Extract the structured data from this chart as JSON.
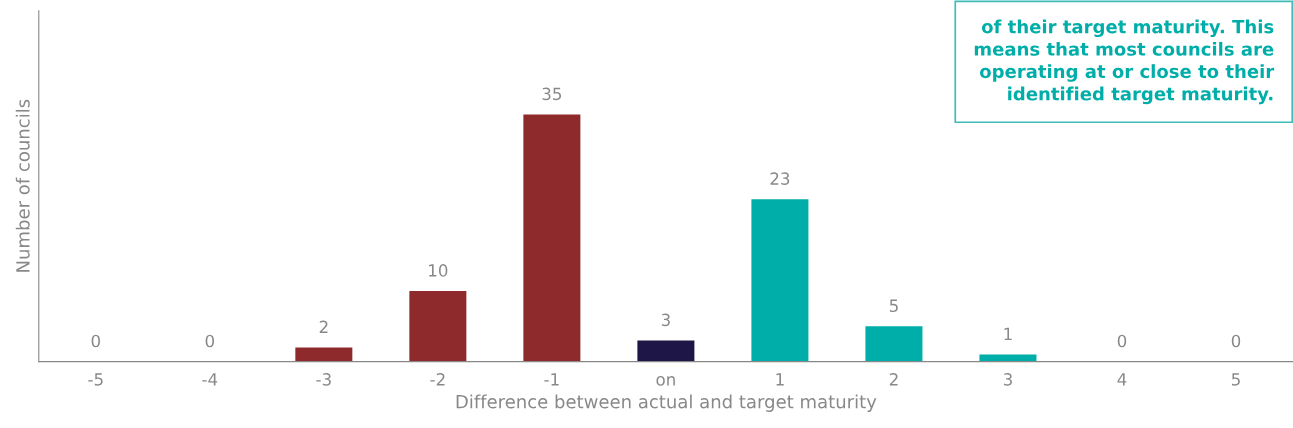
{
  "chart_data": {
    "type": "bar",
    "xlabel": "Difference between actual and target maturity",
    "ylabel": "Number of councils",
    "categories": [
      "-5",
      "-4",
      "-3",
      "-2",
      "-1",
      "on",
      "1",
      "2",
      "3",
      "4",
      "5"
    ],
    "values": [
      0,
      0,
      2,
      10,
      35,
      3,
      23,
      5,
      1,
      0,
      0
    ],
    "colors": [
      "#8e2a2b",
      "#8e2a2b",
      "#8e2a2b",
      "#8e2a2b",
      "#8e2a2b",
      "#1e1646",
      "#00aea9",
      "#00aea9",
      "#00aea9",
      "#00aea9",
      "#00aea9"
    ],
    "data_labels": true,
    "grid": false,
    "legend": false,
    "relative": false,
    "tick_labels": "x",
    "annotations": [
      "of their target maturity. This\nmeans that most councils are\noperating at or close to their\nidentified target maturity."
    ]
  }
}
